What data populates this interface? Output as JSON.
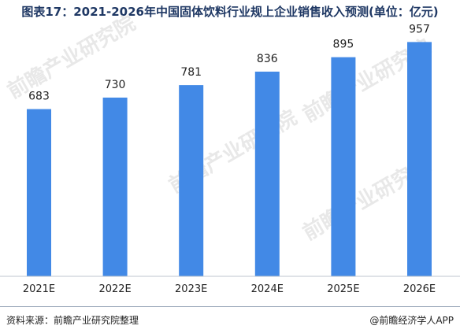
{
  "title": "图表17：2021-2026年中国固体饮料行业规上企业销售收入预测(单位：亿元)",
  "chart_data": {
    "type": "bar",
    "categories": [
      "2021E",
      "2022E",
      "2023E",
      "2024E",
      "2025E",
      "2026E"
    ],
    "values": [
      683,
      730,
      781,
      836,
      895,
      957
    ],
    "ylim": [
      0,
      1000
    ],
    "grid": false,
    "legend": "none",
    "bar_color": "#4289e6"
  },
  "footer": {
    "source": "资料来源：前瞻产业研究院整理",
    "brand": "@前瞻经济学人APP"
  },
  "watermark": {
    "text": "前瞻产业研究院"
  }
}
